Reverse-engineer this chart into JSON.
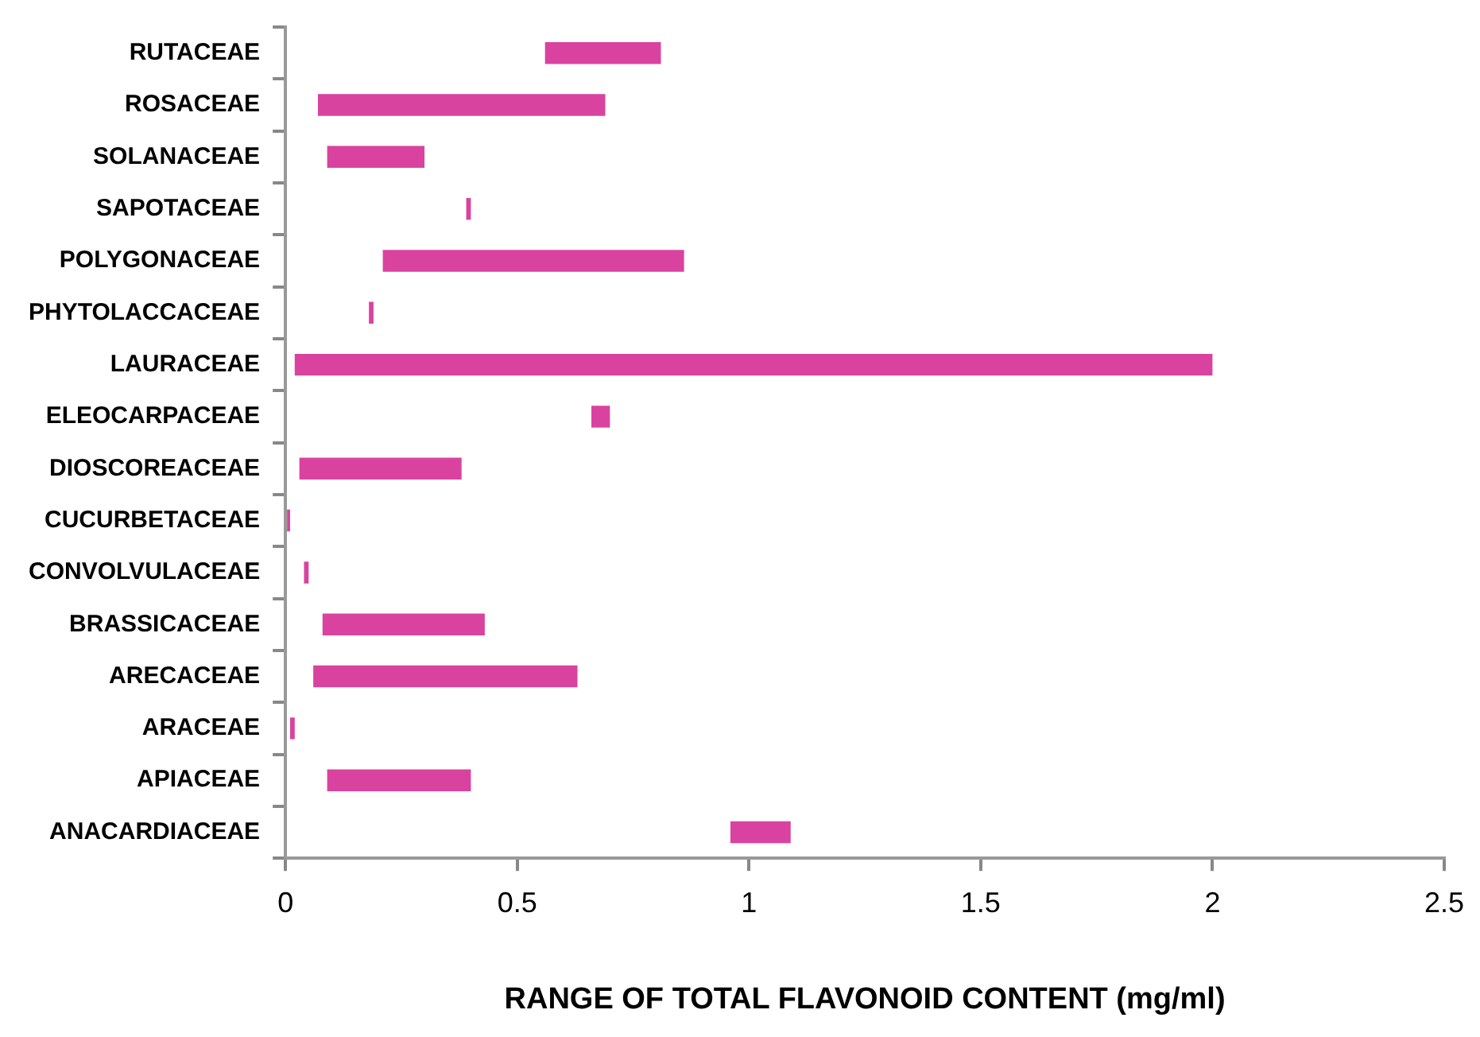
{
  "chart_data": {
    "type": "bar",
    "orientation": "horizontal",
    "xlabel": "RANGE OF TOTAL FLAVONOID CONTENT (mg/ml)",
    "categories": [
      "RUTACEAE",
      "ROSACEAE",
      "SOLANACEAE",
      "SAPOTACEAE",
      "POLYGONACEAE",
      "PHYTOLACCACEAE",
      "LAURACEAE",
      "ELEOCARPACEAE",
      "DIOSCOREACEAE",
      "CUCURBETACEAE",
      "CONVOLVULACEAE",
      "BRASSICACEAE",
      "ARECACEAE",
      "ARACEAE",
      "APIACEAE",
      "ANACARDIACEAE"
    ],
    "base": [
      0.56,
      0.07,
      0.09,
      0.39,
      0.21,
      0.18,
      0.02,
      0.66,
      0.03,
      0,
      0.04,
      0.08,
      0.06,
      0.01,
      0.09,
      0.96
    ],
    "values": [
      0.25,
      0.62,
      0.21,
      0.01,
      0.65,
      0.01,
      1.98,
      0.04,
      0.35,
      0.01,
      0.01,
      0.35,
      0.57,
      0.01,
      0.31,
      0.13
    ],
    "color": "#d9439f",
    "xlim": [
      0,
      2.5
    ],
    "xticks": [
      0,
      0.5,
      1,
      1.5,
      2,
      2.5
    ],
    "grid": false,
    "legend": false
  }
}
